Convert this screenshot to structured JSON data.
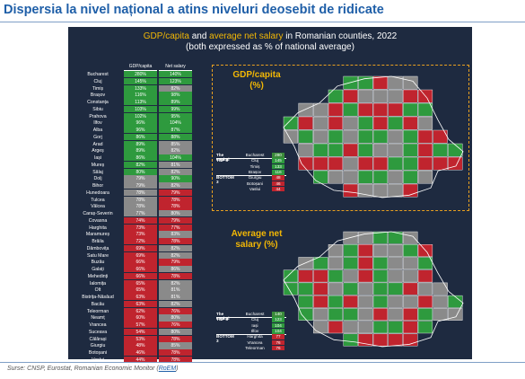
{
  "page_title": "Dispersia la nivel național a atins niveluri deosebit de ridicate",
  "source": {
    "text": "Surse: CNSP, Eurostat, Romanian Economic Monitor (",
    "link": "RoEM",
    "end": ")"
  },
  "chart_data": {
    "type": "table",
    "title_part1": "GDP/capita",
    "title_part2": " and ",
    "title_part3": "average net salary",
    "title_part4": " in Romanian counties, 2022",
    "subtitle": "(both expressed as % of national average)",
    "columns": [
      "",
      "GDP/capita",
      "Net salary"
    ],
    "rows": [
      [
        "Bucharest",
        "280%",
        "140%"
      ],
      [
        "Cluj",
        "145%",
        "123%"
      ],
      [
        "Timiș",
        "133%",
        "82%"
      ],
      [
        "Brașov",
        "116%",
        "98%"
      ],
      [
        "Constanța",
        "113%",
        "89%"
      ],
      [
        "Sibiu",
        "103%",
        "99%"
      ],
      [
        "Prahova",
        "102%",
        "95%"
      ],
      [
        "Ilfov",
        "96%",
        "104%"
      ],
      [
        "Alba",
        "96%",
        "87%"
      ],
      [
        "Gorj",
        "86%",
        "88%"
      ],
      [
        "Arad",
        "89%",
        "85%"
      ],
      [
        "Argeș",
        "89%",
        "82%"
      ],
      [
        "Iași",
        "86%",
        "104%"
      ],
      [
        "Mureș",
        "82%",
        "81%"
      ],
      [
        "Sălaj",
        "80%",
        "82%"
      ],
      [
        "Dolj",
        "79%",
        "90%"
      ],
      [
        "Bihor",
        "79%",
        "82%"
      ],
      [
        "Hunedoara",
        "78%",
        "79%"
      ],
      [
        "Tulcea",
        "78%",
        "78%"
      ],
      [
        "Vâlcea",
        "78%",
        "78%"
      ],
      [
        "Caraș-Severin",
        "77%",
        "80%"
      ],
      [
        "Covasna",
        "74%",
        "79%"
      ],
      [
        "Harghita",
        "73%",
        "77%"
      ],
      [
        "Maramureș",
        "73%",
        "83%"
      ],
      [
        "Brăila",
        "72%",
        "78%"
      ],
      [
        "Dâmbovița",
        "69%",
        "82%"
      ],
      [
        "Satu Mare",
        "69%",
        "82%"
      ],
      [
        "Buzău",
        "66%",
        "79%"
      ],
      [
        "Galați",
        "66%",
        "86%"
      ],
      [
        "Mehedinți",
        "66%",
        "78%"
      ],
      [
        "Ialomița",
        "65%",
        "82%"
      ],
      [
        "Olt",
        "65%",
        "81%"
      ],
      [
        "Bistrița-Năsăud",
        "63%",
        "81%"
      ],
      [
        "Bacău",
        "63%",
        "82%"
      ],
      [
        "Teleorman",
        "62%",
        "76%"
      ],
      [
        "Neamț",
        "60%",
        "80%"
      ],
      [
        "Vrancea",
        "57%",
        "76%"
      ],
      [
        "Suceava",
        "54%",
        "80%"
      ],
      [
        "Călărași",
        "53%",
        "78%"
      ],
      [
        "Giurgiu",
        "48%",
        "85%"
      ],
      [
        "Botoșani",
        "46%",
        "78%"
      ],
      [
        "Vaslui",
        "44%",
        "78%"
      ]
    ],
    "maps": [
      {
        "heading_line1": "GDP/capita",
        "heading_line2": "(%)",
        "legend": [
          {
            "group_line1": "The",
            "group_line2": "capital",
            "group_line3": "",
            "county": "Bucharest",
            "value": "280"
          },
          {
            "group_line1": "TOP",
            "group_line2": "3",
            "group_line3": "",
            "county": "Cluj",
            "value": "145"
          },
          {
            "group_line1": "",
            "group_line2": "",
            "group_line3": "",
            "county": "Timiș",
            "value": "133"
          },
          {
            "group_line1": "",
            "group_line2": "",
            "group_line3": "",
            "county": "Brașov",
            "value": "116"
          },
          {
            "group_line1": "BOTTOM",
            "group_line2": "3",
            "group_line3": "",
            "county": "Giurgiu",
            "value": "48"
          },
          {
            "group_line1": "",
            "group_line2": "",
            "group_line3": "",
            "county": "Botoșani",
            "value": "46"
          },
          {
            "group_line1": "",
            "group_line2": "",
            "group_line3": "",
            "county": "Vaslui",
            "value": "44"
          }
        ]
      },
      {
        "heading_line1": "Average net",
        "heading_line2": "salary (%)",
        "legend": [
          {
            "group_line1": "The",
            "group_line2": "capital",
            "group_line3": "",
            "county": "Bucharest",
            "value": "140"
          },
          {
            "group_line1": "TOP",
            "group_line2": "3",
            "group_line3": "",
            "county": "Cluj",
            "value": "123"
          },
          {
            "group_line1": "",
            "group_line2": "",
            "group_line3": "",
            "county": "Iași",
            "value": "104"
          },
          {
            "group_line1": "",
            "group_line2": "",
            "group_line3": "",
            "county": "Ilfov",
            "value": "104"
          },
          {
            "group_line1": "BOTTOM",
            "group_line2": "3",
            "group_line3": "",
            "county": "Harghita",
            "value": "77"
          },
          {
            "group_line1": "",
            "group_line2": "",
            "group_line3": "",
            "county": "Vrancea",
            "value": "76"
          },
          {
            "group_line1": "",
            "group_line2": "",
            "group_line3": "",
            "county": "Teleorman",
            "value": "76"
          }
        ]
      }
    ],
    "colors": {
      "high": "#2e9a3e",
      "mid": "#8a8a8a",
      "low": "#c0242e",
      "panel": "#1e2a40",
      "accent": "#f2b705"
    }
  }
}
